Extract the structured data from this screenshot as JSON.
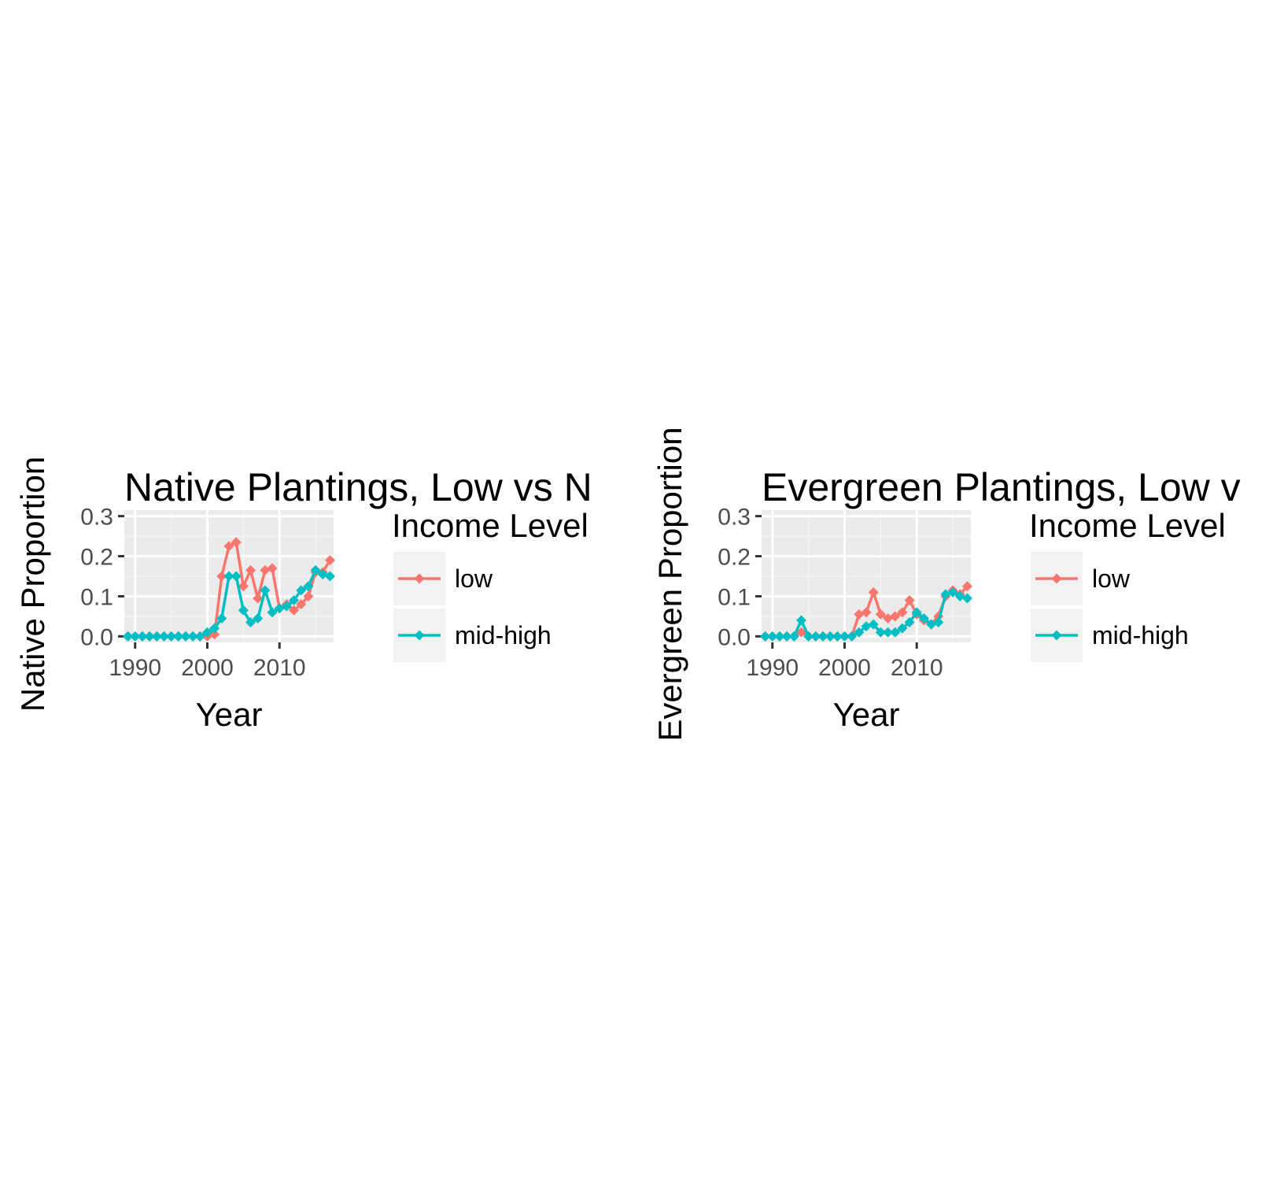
{
  "chart_data": [
    {
      "type": "line",
      "title": "Native Plantings, Low vs N",
      "xlabel": "Year",
      "ylabel": "Native Proportion",
      "xlim": [
        1988.5,
        2017.5
      ],
      "ylim": [
        -0.015,
        0.315
      ],
      "x_ticks": [
        "1990",
        "2000",
        "2010"
      ],
      "y_ticks": [
        "0.0",
        "0.1",
        "0.2",
        "0.3"
      ],
      "grid": true,
      "legend": {
        "title": "Income Level",
        "placement": "right"
      },
      "x": [
        1989,
        1990,
        1991,
        1992,
        1993,
        1994,
        1995,
        1996,
        1997,
        1998,
        1999,
        2000,
        2001,
        2002,
        2003,
        2004,
        2005,
        2006,
        2007,
        2008,
        2009,
        2010,
        2011,
        2012,
        2013,
        2014,
        2015,
        2016,
        2017
      ],
      "series": [
        {
          "name": "low",
          "color": "#F8766D",
          "values": [
            0,
            0,
            0,
            0,
            0,
            0,
            0,
            0,
            0,
            0,
            0,
            0,
            0.005,
            0.15,
            0.225,
            0.235,
            0.125,
            0.165,
            0.095,
            0.165,
            0.17,
            0.07,
            0.08,
            0.065,
            0.08,
            0.1,
            0.16,
            0.16,
            0.19
          ]
        },
        {
          "name": "mid-high",
          "color": "#00BFC4",
          "values": [
            0,
            0,
            0,
            0,
            0,
            0,
            0,
            0,
            0,
            0,
            0,
            0.01,
            0.02,
            0.045,
            0.15,
            0.15,
            0.065,
            0.035,
            0.045,
            0.115,
            0.06,
            0.07,
            0.075,
            0.09,
            0.115,
            0.125,
            0.165,
            0.155,
            0.15
          ]
        }
      ]
    },
    {
      "type": "line",
      "title": "Evergreen Plantings, Low v",
      "xlabel": "Year",
      "ylabel": "Evergreen Proportion",
      "xlim": [
        1988.5,
        2017.5
      ],
      "ylim": [
        -0.015,
        0.315
      ],
      "x_ticks": [
        "1990",
        "2000",
        "2010"
      ],
      "y_ticks": [
        "0.0",
        "0.1",
        "0.2",
        "0.3"
      ],
      "grid": true,
      "legend": {
        "title": "Income Level",
        "placement": "right"
      },
      "x": [
        1989,
        1990,
        1991,
        1992,
        1993,
        1994,
        1995,
        1996,
        1997,
        1998,
        1999,
        2000,
        2001,
        2002,
        2003,
        2004,
        2005,
        2006,
        2007,
        2008,
        2009,
        2010,
        2011,
        2012,
        2013,
        2014,
        2015,
        2016,
        2017
      ],
      "series": [
        {
          "name": "low",
          "color": "#F8766D",
          "values": [
            0,
            0,
            0,
            0,
            0,
            0.01,
            0,
            0,
            0,
            0,
            0,
            0,
            0,
            0.055,
            0.06,
            0.11,
            0.055,
            0.045,
            0.05,
            0.06,
            0.09,
            0.055,
            0.04,
            0.03,
            0.05,
            0.1,
            0.115,
            0.105,
            0.125
          ]
        },
        {
          "name": "mid-high",
          "color": "#00BFC4",
          "values": [
            0,
            0,
            0,
            0,
            0,
            0.04,
            0,
            0,
            0,
            0,
            0,
            0,
            0,
            0.01,
            0.025,
            0.03,
            0.01,
            0.01,
            0.01,
            0.02,
            0.035,
            0.06,
            0.045,
            0.03,
            0.035,
            0.105,
            0.11,
            0.1,
            0.095
          ]
        }
      ]
    }
  ]
}
